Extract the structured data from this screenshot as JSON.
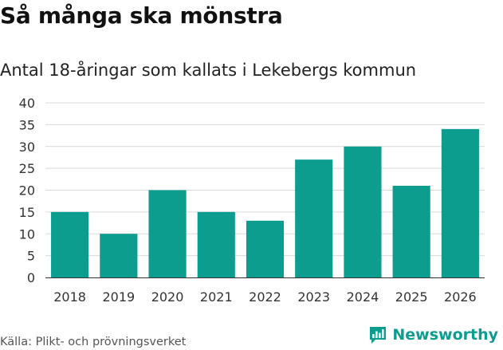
{
  "title": "Så många ska mönstra",
  "subtitle": "Antal 18-åringar som kallats i Lekebergs kommun",
  "source": "Källa: Plikt- och prövningsverket",
  "brand": {
    "name": "Newsworthy",
    "color": "#0d9d8e"
  },
  "chart_data": {
    "type": "bar",
    "title": "Så många ska mönstra",
    "subtitle": "Antal 18-åringar som kallats i Lekebergs kommun",
    "categories": [
      "2018",
      "2019",
      "2020",
      "2021",
      "2022",
      "2023",
      "2024",
      "2025",
      "2026"
    ],
    "values": [
      15,
      10,
      20,
      15,
      13,
      27,
      30,
      21,
      34
    ],
    "yticks": [
      "0",
      "5",
      "10",
      "15",
      "20",
      "25",
      "30",
      "35",
      "40"
    ],
    "ylim": [
      0,
      40
    ],
    "xlabel": "",
    "ylabel": "",
    "grid": true,
    "bar_color": "#0d9d8e"
  }
}
